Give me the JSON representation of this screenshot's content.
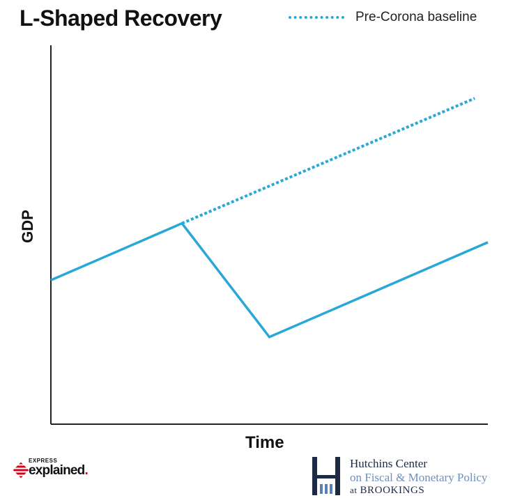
{
  "chart_data": {
    "type": "line",
    "title": "L-Shaped Recovery",
    "xlabel": "Time",
    "ylabel": "GDP",
    "xlim": [
      0,
      100
    ],
    "ylim": [
      0,
      100
    ],
    "grid": false,
    "legend_position": "top-right",
    "legend": [
      {
        "label": "Pre-Corona baseline",
        "style": "dotted",
        "color": "#29a8d8"
      }
    ],
    "series": [
      {
        "style": "solid",
        "color": "#29a8d8",
        "x": [
          0,
          30,
          50,
          100
        ],
        "y": [
          38,
          53,
          23,
          48
        ]
      },
      {
        "name": "Pre-Corona baseline",
        "style": "dotted",
        "color": "#29a8d8",
        "x": [
          30,
          97
        ],
        "y": [
          53,
          86
        ]
      }
    ]
  },
  "footer": {
    "express": {
      "small": "EXPRESS",
      "big": "explained",
      "dot": "."
    },
    "hutchins": {
      "line1": "Hutchins Center",
      "line2": "on Fiscal & Monetary Policy",
      "line3_prefix": "at ",
      "line3_name": "BROOKINGS"
    }
  }
}
